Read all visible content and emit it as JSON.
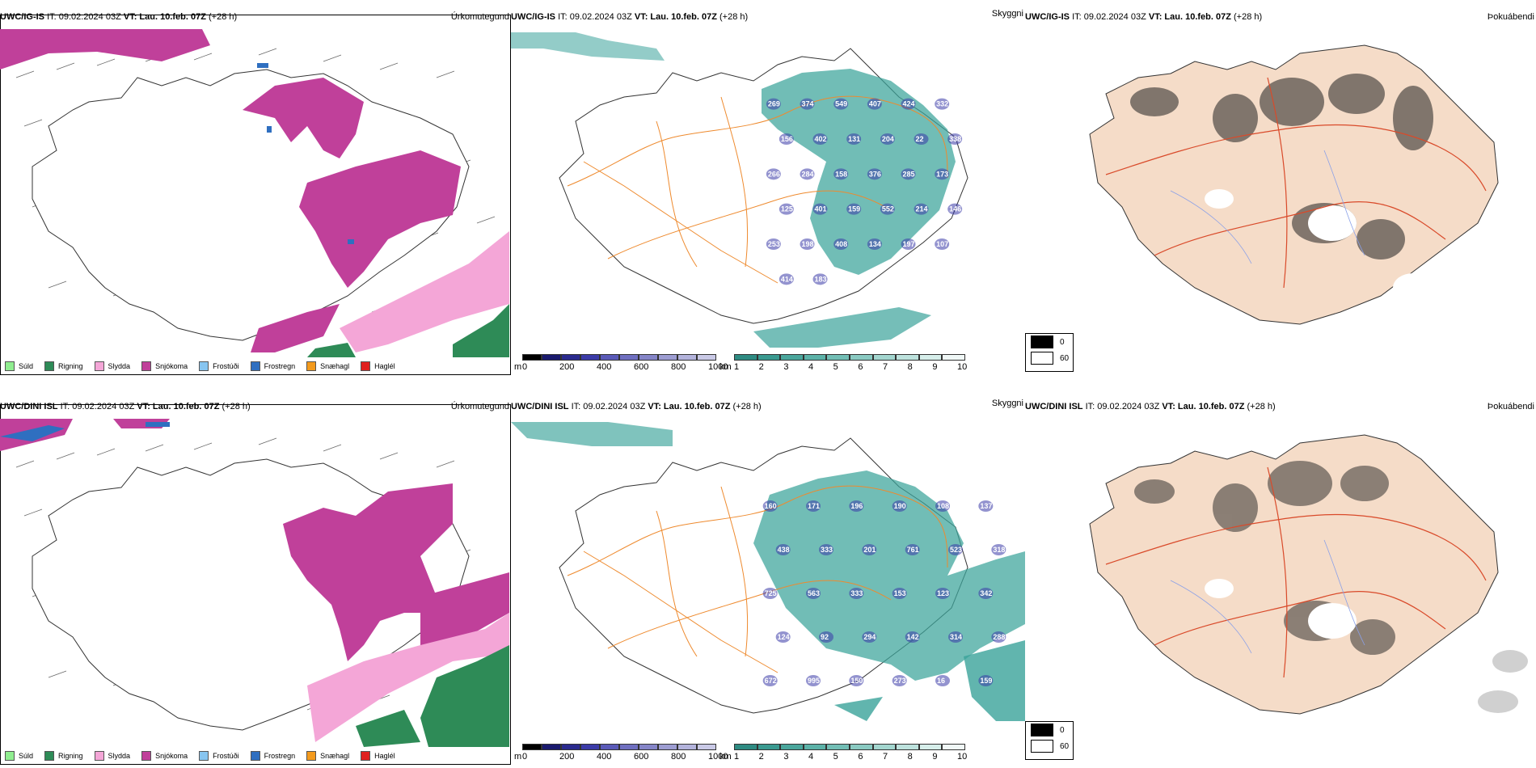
{
  "panels": {
    "top": {
      "precip": {
        "source": "UWC/IG-IS",
        "it": "IT: 09.02.2024 03Z",
        "vt": "VT: Lau. 10.feb. 07Z",
        "lead": "(+28 h)",
        "title": "Úrkomutegund"
      },
      "vis": {
        "source": "UWC/IG-IS",
        "it": "IT: 09.02.2024 03Z",
        "vt": "VT: Lau. 10.feb. 07Z",
        "lead": "(+28 h)",
        "title": "Skyggni"
      },
      "fog": {
        "source": "UWC/IG-IS",
        "it": "IT: 09.02.2024 03Z",
        "vt": "VT: Lau. 10.feb. 07Z",
        "lead": "(+28 h)",
        "title": "Þokuábendi"
      }
    },
    "bottom": {
      "precip": {
        "source": "UWC/DINI ISL",
        "it": "IT: 09.02.2024 03Z",
        "vt": "VT: Lau. 10.feb. 07Z",
        "lead": "(+28 h)",
        "title": "Úrkomutegund"
      },
      "vis": {
        "source": "UWC/DINI ISL",
        "it": "IT: 09.02.2024 03Z",
        "vt": "VT: Lau. 10.feb. 07Z",
        "lead": "(+28 h)",
        "title": "Skyggni"
      },
      "fog": {
        "source": "UWC/DINI ISL",
        "it": "IT: 09.02.2024 03Z",
        "vt": "VT: Lau. 10.feb. 07Z",
        "lead": "(+28 h)",
        "title": "Þokuábendi"
      }
    }
  },
  "precip_legend": [
    {
      "label": "Súld",
      "color": "#90ee90"
    },
    {
      "label": "Rigning",
      "color": "#2e8b57"
    },
    {
      "label": "Slydda",
      "color": "#f4a6d7"
    },
    {
      "label": "Snjókoma",
      "color": "#c0409a"
    },
    {
      "label": "Frostúði",
      "color": "#87c5f0"
    },
    {
      "label": "Frostregn",
      "color": "#2f6fc0"
    },
    {
      "label": "Snæhagl",
      "color": "#f39a1d"
    },
    {
      "label": "Haglél",
      "color": "#e0201f"
    }
  ],
  "ceiling_scale": {
    "unit": "m",
    "ticks": [
      "0",
      "200",
      "400",
      "600",
      "800",
      "1000"
    ]
  },
  "vis_scale": {
    "unit": "km",
    "ticks": [
      "1",
      "2",
      "3",
      "4",
      "5",
      "6",
      "7",
      "8",
      "9",
      "10"
    ]
  },
  "fog_legend": [
    {
      "label": "0",
      "color": "#000000"
    },
    {
      "label": "60",
      "color": "#ffffff"
    }
  ],
  "ceiling_labels_top": [
    "269",
    "374",
    "549",
    "407",
    "424",
    "332",
    "156",
    "402",
    "131",
    "204",
    "22",
    "338",
    "266",
    "284",
    "158",
    "376",
    "285",
    "173",
    "125",
    "401",
    "159",
    "552",
    "214",
    "146",
    "253",
    "198",
    "408",
    "134",
    "197",
    "107",
    "414",
    "183"
  ],
  "ceiling_labels_bottom": [
    "160",
    "171",
    "196",
    "190",
    "108",
    "137",
    "438",
    "333",
    "201",
    "761",
    "523",
    "318",
    "725",
    "563",
    "333",
    "153",
    "123",
    "342",
    "124",
    "92",
    "294",
    "142",
    "314",
    "288",
    "672",
    "995",
    "150",
    "273",
    "16",
    "159"
  ],
  "colors": {
    "snow": "#c0409a",
    "sleet": "#f4a6d7",
    "rain": "#2e8b57",
    "frz": "#2f6fc0",
    "vis_teal": "#3aa39a",
    "ceiling_blue": "#3a3aa8",
    "road": "#ee8a2e",
    "land_fog": "#f5dcc8",
    "fog_road": "#d94a2a",
    "fog_river": "#8aa0e8"
  }
}
